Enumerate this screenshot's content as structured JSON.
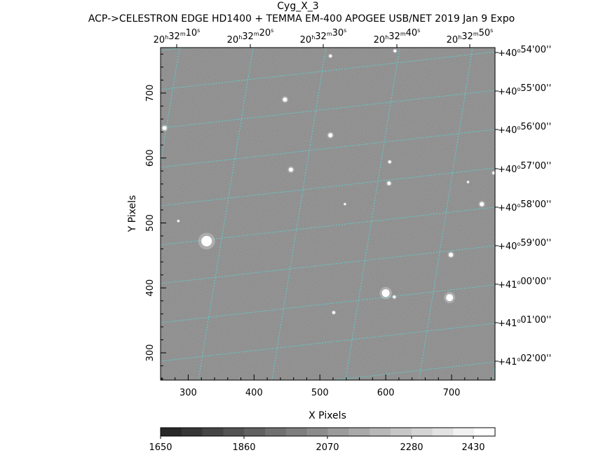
{
  "header": {
    "object_name": "Cyg_X_3",
    "subtitle": "ACP->CELESTRON EDGE HD1400 + TEMMA EM-400 APOGEE USB/NET   2019 Jan  9     Expo"
  },
  "axes": {
    "xlabel": "X Pixels",
    "ylabel": "Y Pixels",
    "x_range": [
      258,
      766
    ],
    "y_range": [
      258,
      770
    ],
    "x_ticks": [
      "300",
      "400",
      "500",
      "600",
      "700"
    ],
    "y_ticks": [
      "300",
      "400",
      "500",
      "600",
      "700"
    ],
    "ra_ticks": [
      {
        "h": "20",
        "m": "32",
        "s": "10"
      },
      {
        "h": "20",
        "m": "32",
        "s": "20"
      },
      {
        "h": "20",
        "m": "32",
        "s": "30"
      },
      {
        "h": "20",
        "m": "32",
        "s": "40"
      },
      {
        "h": "20",
        "m": "32",
        "s": "50"
      }
    ],
    "dec_ticks": [
      {
        "sign": "+",
        "d": "40",
        "m": "54",
        "s": "00"
      },
      {
        "sign": "+",
        "d": "40",
        "m": "55",
        "s": "00"
      },
      {
        "sign": "+",
        "d": "40",
        "m": "56",
        "s": "00"
      },
      {
        "sign": "+",
        "d": "40",
        "m": "57",
        "s": "00"
      },
      {
        "sign": "+",
        "d": "40",
        "m": "58",
        "s": "00"
      },
      {
        "sign": "+",
        "d": "40",
        "m": "59",
        "s": "00"
      },
      {
        "sign": "+",
        "d": "41",
        "m": "00",
        "s": "00"
      },
      {
        "sign": "+",
        "d": "41",
        "m": "01",
        "s": "00"
      },
      {
        "sign": "+",
        "d": "41",
        "m": "02",
        "s": "00"
      }
    ]
  },
  "colorbar": {
    "labels": [
      "1650",
      "1860",
      "2070",
      "2280",
      "2430"
    ],
    "segments": 16
  },
  "colors": {
    "background": "#888888",
    "grid": "#5ecfcf"
  },
  "stars": [
    {
      "x": 328,
      "y": 472,
      "r": 7.5
    },
    {
      "x": 600,
      "y": 392,
      "r": 5.5
    },
    {
      "x": 697,
      "y": 385,
      "r": 5
    },
    {
      "x": 264,
      "y": 646,
      "r": 3
    },
    {
      "x": 447,
      "y": 690,
      "r": 3
    },
    {
      "x": 516,
      "y": 635,
      "r": 3
    },
    {
      "x": 456,
      "y": 582,
      "r": 3
    },
    {
      "x": 605,
      "y": 561,
      "r": 2.5
    },
    {
      "x": 746,
      "y": 529,
      "r": 3
    },
    {
      "x": 699,
      "y": 451,
      "r": 3
    },
    {
      "x": 613,
      "y": 386,
      "r": 2
    },
    {
      "x": 521,
      "y": 362,
      "r": 2
    },
    {
      "x": 614,
      "y": 765,
      "r": 2
    },
    {
      "x": 764,
      "y": 577,
      "r": 2
    },
    {
      "x": 606,
      "y": 594,
      "r": 2
    },
    {
      "x": 516,
      "y": 757,
      "r": 2
    },
    {
      "x": 285,
      "y": 503,
      "r": 1.5
    },
    {
      "x": 538,
      "y": 529,
      "r": 1.5
    },
    {
      "x": 725,
      "y": 563,
      "r": 1.5
    }
  ]
}
